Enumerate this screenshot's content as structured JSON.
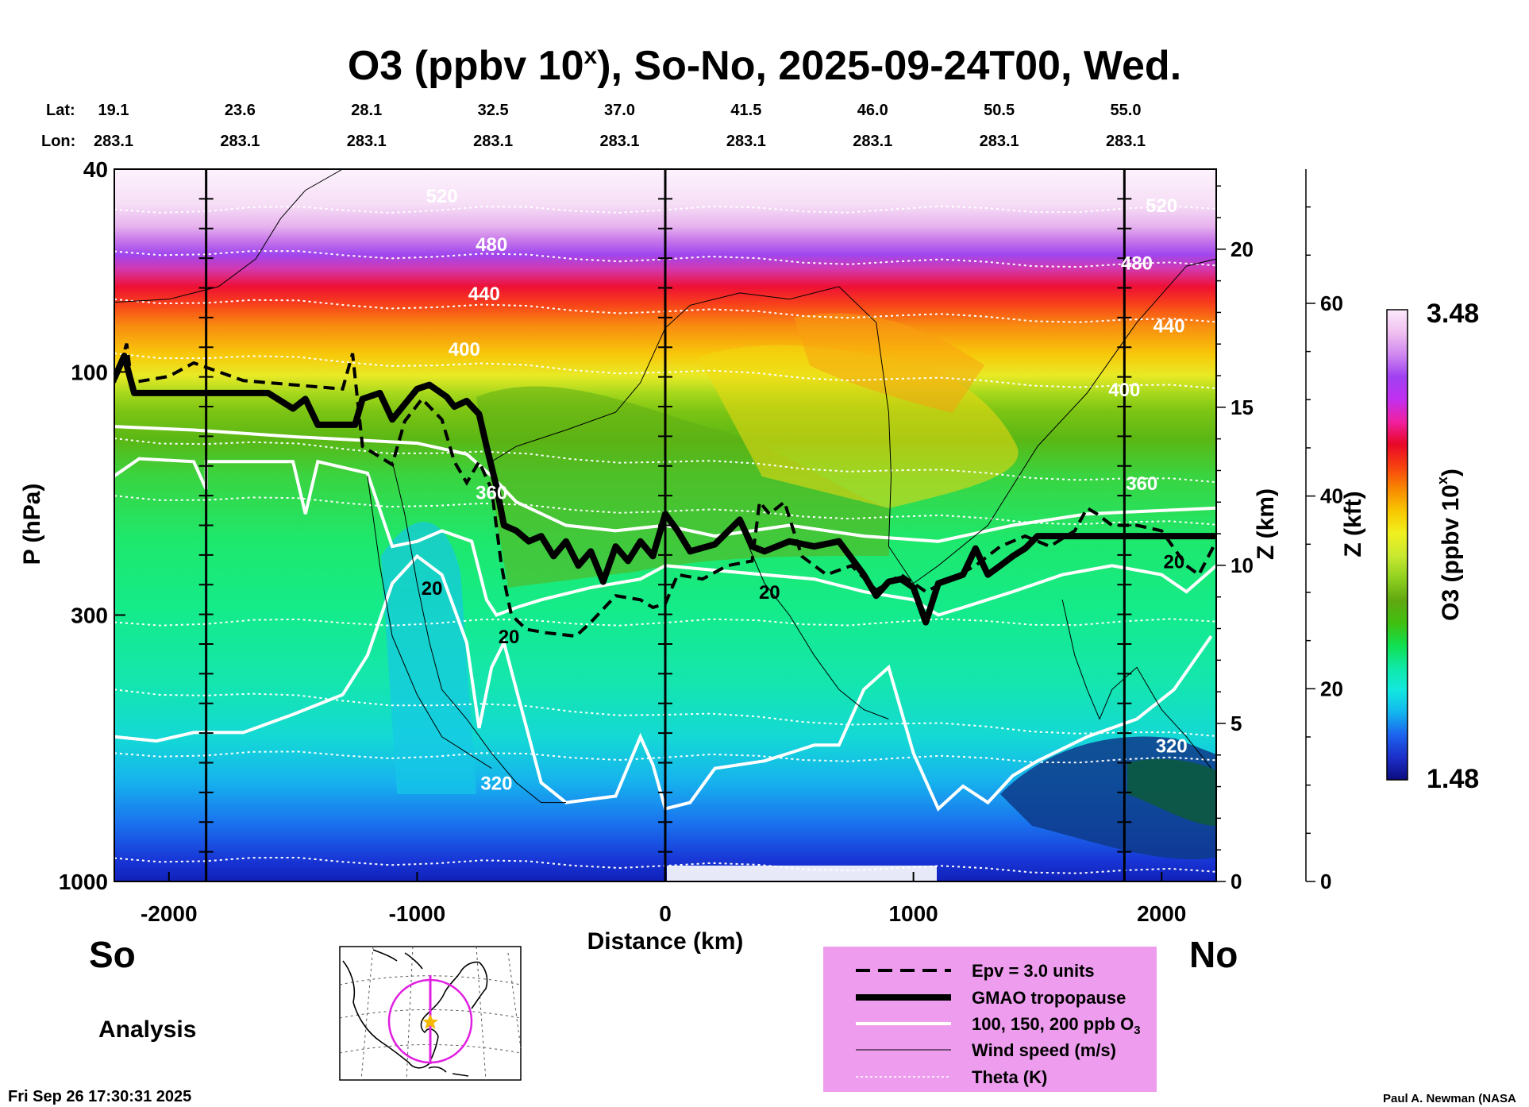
{
  "title_prefix": "O3 (ppbv 10",
  "title_sup": "x",
  "title_suffix": "), So-No, 2025-09-24T00, Wed.",
  "lat_label": "Lat:",
  "lon_label": "Lon:",
  "lat_values": [
    "19.1",
    "23.6",
    "28.1",
    "32.5",
    "37.0",
    "41.5",
    "46.0",
    "50.5",
    "55.0"
  ],
  "lon_values": [
    "283.1",
    "283.1",
    "283.1",
    "283.1",
    "283.1",
    "283.1",
    "283.1",
    "283.1",
    "283.1"
  ],
  "left_dir": "So",
  "right_dir": "No",
  "analysis_label": "Analysis",
  "timestamp": "Fri Sep 26 17:30:31 2025",
  "credit": "Paul A. Newman (NASA",
  "chart_data": {
    "type": "heatmap",
    "title": "O3 (ppbv 10^x), So-No, 2025-09-24T00, Wed.",
    "xlabel": "Distance (km)",
    "ylabel": "P (hPa)",
    "right_axis1_label": "Z (km)",
    "right_axis2_label": "Z (kft)",
    "colorbar_label": "O3 (ppbv 10",
    "colorbar_label_sup": "x",
    "colorbar_label_end": ")",
    "colorbar_range": [
      1.48,
      3.48
    ],
    "colorbar_max_label": "3.48",
    "colorbar_min_label": "1.48",
    "xlim": [
      -2220,
      2220
    ],
    "ylim_hpa": [
      1000,
      40
    ],
    "x_ticks": [
      -2000,
      -1000,
      0,
      1000,
      2000
    ],
    "x_tick_labels": [
      "-2000",
      "-1000",
      "0",
      "1000",
      "2000"
    ],
    "y_ticks": [
      40,
      100,
      300,
      1000
    ],
    "y_tick_labels": [
      "40",
      "100",
      "300",
      "1000"
    ],
    "z_km_ticks": [
      0,
      5,
      10,
      15,
      20
    ],
    "z_km_labels": [
      "0",
      "5",
      "10",
      "15",
      "20"
    ],
    "z_kft_ticks": [
      0,
      20,
      40,
      60
    ],
    "z_kft_labels": [
      "0",
      "20",
      "40",
      "60"
    ],
    "vertical_lines_km": [
      -1850,
      0,
      1850
    ],
    "theta_labels": [
      {
        "text": "520",
        "x": -900,
        "p": 45
      },
      {
        "text": "480",
        "x": -700,
        "p": 56
      },
      {
        "text": "440",
        "x": -730,
        "p": 70
      },
      {
        "text": "400",
        "x": -810,
        "p": 90
      },
      {
        "text": "360",
        "x": -700,
        "p": 172
      },
      {
        "text": "320",
        "x": -680,
        "p": 640
      },
      {
        "text": "520",
        "x": 2000,
        "p": 47
      },
      {
        "text": "480",
        "x": 1900,
        "p": 61
      },
      {
        "text": "440",
        "x": 2030,
        "p": 81
      },
      {
        "text": "400",
        "x": 1850,
        "p": 108
      },
      {
        "text": "360",
        "x": 1920,
        "p": 165
      },
      {
        "text": "320",
        "x": 2040,
        "p": 540
      }
    ],
    "wind_labels": [
      {
        "text": "20",
        "x": -940,
        "p": 265
      },
      {
        "text": "20",
        "x": -630,
        "p": 330
      },
      {
        "text": "20",
        "x": 420,
        "p": 270
      },
      {
        "text": "20",
        "x": 2050,
        "p": 235
      }
    ],
    "tropopause_km": [
      [
        -2220,
        103
      ],
      [
        -2180,
        93
      ],
      [
        -2140,
        110
      ],
      [
        -1900,
        110
      ],
      [
        -1600,
        110
      ],
      [
        -1500,
        118
      ],
      [
        -1450,
        113
      ],
      [
        -1400,
        127
      ],
      [
        -1350,
        127
      ],
      [
        -1250,
        127
      ],
      [
        -1220,
        113
      ],
      [
        -1150,
        110
      ],
      [
        -1100,
        124
      ],
      [
        -1000,
        108
      ],
      [
        -950,
        106
      ],
      [
        -880,
        112
      ],
      [
        -850,
        117
      ],
      [
        -800,
        114
      ],
      [
        -750,
        121
      ],
      [
        -720,
        140
      ],
      [
        -680,
        168
      ],
      [
        -650,
        200
      ],
      [
        -600,
        205
      ],
      [
        -550,
        215
      ],
      [
        -500,
        210
      ],
      [
        -450,
        230
      ],
      [
        -400,
        215
      ],
      [
        -350,
        240
      ],
      [
        -300,
        225
      ],
      [
        -250,
        258
      ],
      [
        -200,
        220
      ],
      [
        -150,
        235
      ],
      [
        -100,
        215
      ],
      [
        -50,
        230
      ],
      [
        0,
        190
      ],
      [
        50,
        205
      ],
      [
        100,
        225
      ],
      [
        200,
        218
      ],
      [
        300,
        195
      ],
      [
        350,
        220
      ],
      [
        400,
        225
      ],
      [
        500,
        215
      ],
      [
        600,
        220
      ],
      [
        700,
        215
      ],
      [
        800,
        250
      ],
      [
        850,
        275
      ],
      [
        900,
        258
      ],
      [
        950,
        255
      ],
      [
        1000,
        265
      ],
      [
        1050,
        310
      ],
      [
        1100,
        260
      ],
      [
        1200,
        250
      ],
      [
        1250,
        222
      ],
      [
        1300,
        250
      ],
      [
        1350,
        240
      ],
      [
        1400,
        230
      ],
      [
        1450,
        222
      ],
      [
        1500,
        210
      ],
      [
        1600,
        210
      ],
      [
        1800,
        210
      ],
      [
        2220,
        210
      ]
    ],
    "epv_km": [
      [
        -2220,
        105
      ],
      [
        -2170,
        88
      ],
      [
        -2150,
        105
      ],
      [
        -2000,
        102
      ],
      [
        -1900,
        96
      ],
      [
        -1700,
        104
      ],
      [
        -1300,
        108
      ],
      [
        -1260,
        92
      ],
      [
        -1220,
        140
      ],
      [
        -1100,
        152
      ],
      [
        -1050,
        125
      ],
      [
        -980,
        113
      ],
      [
        -900,
        124
      ],
      [
        -850,
        150
      ],
      [
        -800,
        165
      ],
      [
        -750,
        150
      ],
      [
        -700,
        170
      ],
      [
        -660,
        240
      ],
      [
        -640,
        270
      ],
      [
        -620,
        300
      ],
      [
        -560,
        320
      ],
      [
        -480,
        325
      ],
      [
        -360,
        330
      ],
      [
        -300,
        310
      ],
      [
        -200,
        275
      ],
      [
        -100,
        280
      ],
      [
        -50,
        290
      ],
      [
        0,
        285
      ],
      [
        50,
        250
      ],
      [
        150,
        255
      ],
      [
        250,
        240
      ],
      [
        350,
        235
      ],
      [
        380,
        180
      ],
      [
        420,
        190
      ],
      [
        480,
        180
      ],
      [
        550,
        230
      ],
      [
        650,
        250
      ],
      [
        750,
        240
      ],
      [
        850,
        268
      ],
      [
        950,
        250
      ],
      [
        1050,
        270
      ],
      [
        1150,
        255
      ],
      [
        1250,
        240
      ],
      [
        1350,
        220
      ],
      [
        1450,
        210
      ],
      [
        1550,
        220
      ],
      [
        1650,
        205
      ],
      [
        1700,
        185
      ],
      [
        1740,
        190
      ],
      [
        1800,
        200
      ],
      [
        1900,
        200
      ],
      [
        2000,
        205
      ],
      [
        2100,
        240
      ],
      [
        2150,
        250
      ],
      [
        2220,
        215
      ]
    ],
    "theta_levels_K": [
      320,
      360,
      400,
      440,
      480,
      520
    ]
  },
  "legend": {
    "items": [
      {
        "label": "Epv = 3.0 units",
        "style": "dashed"
      },
      {
        "label": "GMAO tropopause",
        "style": "thick"
      },
      {
        "label": "100, 150, 200 ppb O",
        "sub": "3",
        "style": "white"
      },
      {
        "label": "Wind speed (m/s)",
        "style": "thin"
      },
      {
        "label": "Theta (K)",
        "style": "dotted"
      }
    ]
  },
  "colors": {
    "legend_bg": "#EE9DEE",
    "map_circle": "#E020E0",
    "star": "#F5B800",
    "colorbar_stops": [
      "#0c0c80",
      "#1c2fc8",
      "#1c62ee",
      "#13b5ee",
      "#12e8e0",
      "#10e8a8",
      "#10e050",
      "#40c010",
      "#60a810",
      "#90d020",
      "#c8e830",
      "#f0f020",
      "#f8c800",
      "#f88800",
      "#f84010",
      "#e80828",
      "#f020a0",
      "#c030f0",
      "#a040f0",
      "#d088f0",
      "#f0c0f0",
      "#fceafc"
    ]
  }
}
